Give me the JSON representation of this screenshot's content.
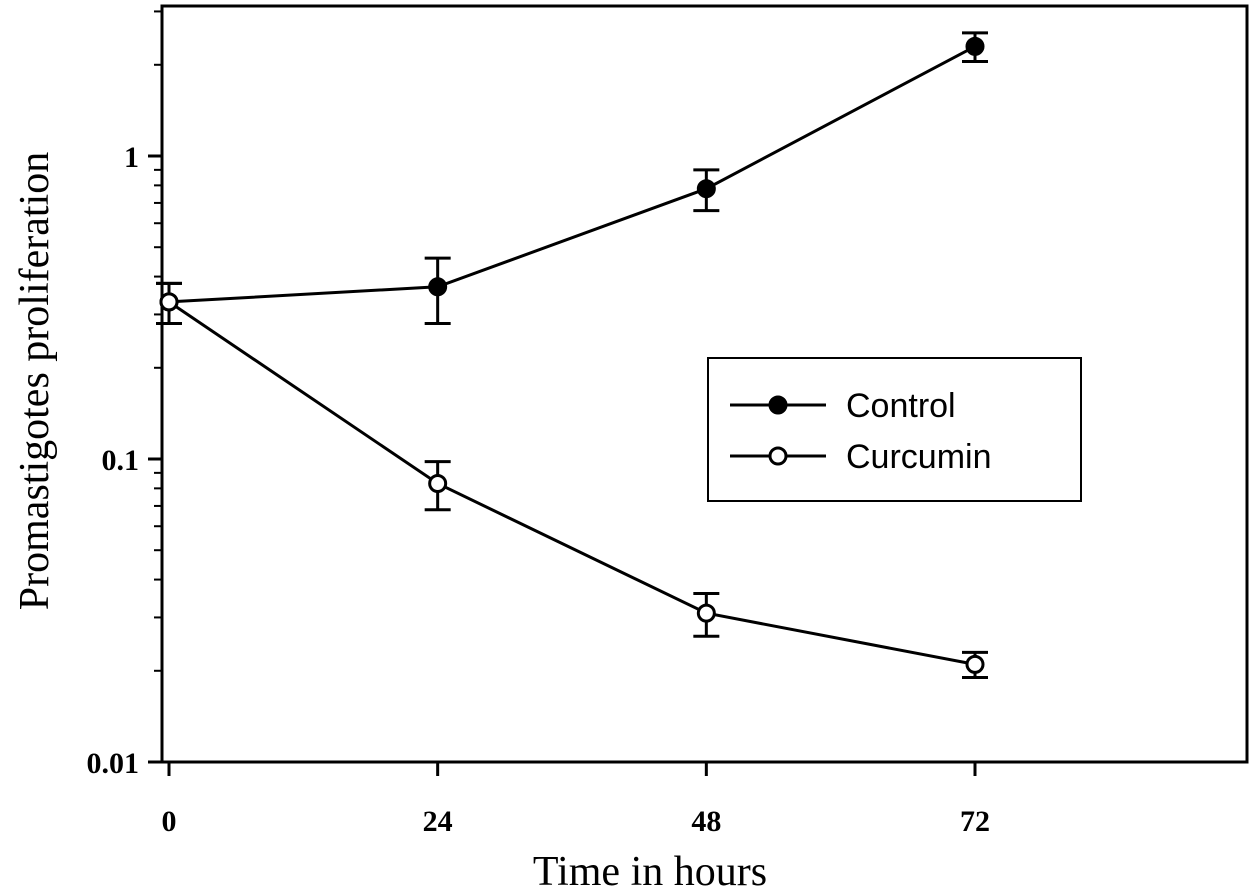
{
  "chart_data": {
    "type": "line",
    "xlabel": "Time in hours",
    "ylabel": "Promastigotes proliferation",
    "yscale": "log",
    "xlim": [
      0,
      100
    ],
    "ylim": [
      0.01,
      3
    ],
    "x_ticks": [
      0,
      24,
      48,
      72
    ],
    "x_tick_labels": [
      "0",
      "24",
      "48",
      "72"
    ],
    "y_ticks": [
      0.01,
      0.1,
      1
    ],
    "y_tick_labels": [
      "0.01",
      "0.1",
      "1"
    ],
    "grid": false,
    "legend_position": "center-right",
    "x": [
      0,
      24,
      48,
      72
    ],
    "series": [
      {
        "name": "Control",
        "marker": "filled-circle",
        "color": "#000000",
        "values": [
          0.33,
          0.37,
          0.78,
          2.3
        ],
        "error": [
          0.05,
          0.09,
          0.12,
          0.25
        ]
      },
      {
        "name": "Curcumin",
        "marker": "open-circle",
        "color": "#000000",
        "values": [
          0.33,
          0.083,
          0.031,
          0.021
        ],
        "error": [
          0.05,
          0.015,
          0.005,
          0.002
        ]
      }
    ]
  }
}
